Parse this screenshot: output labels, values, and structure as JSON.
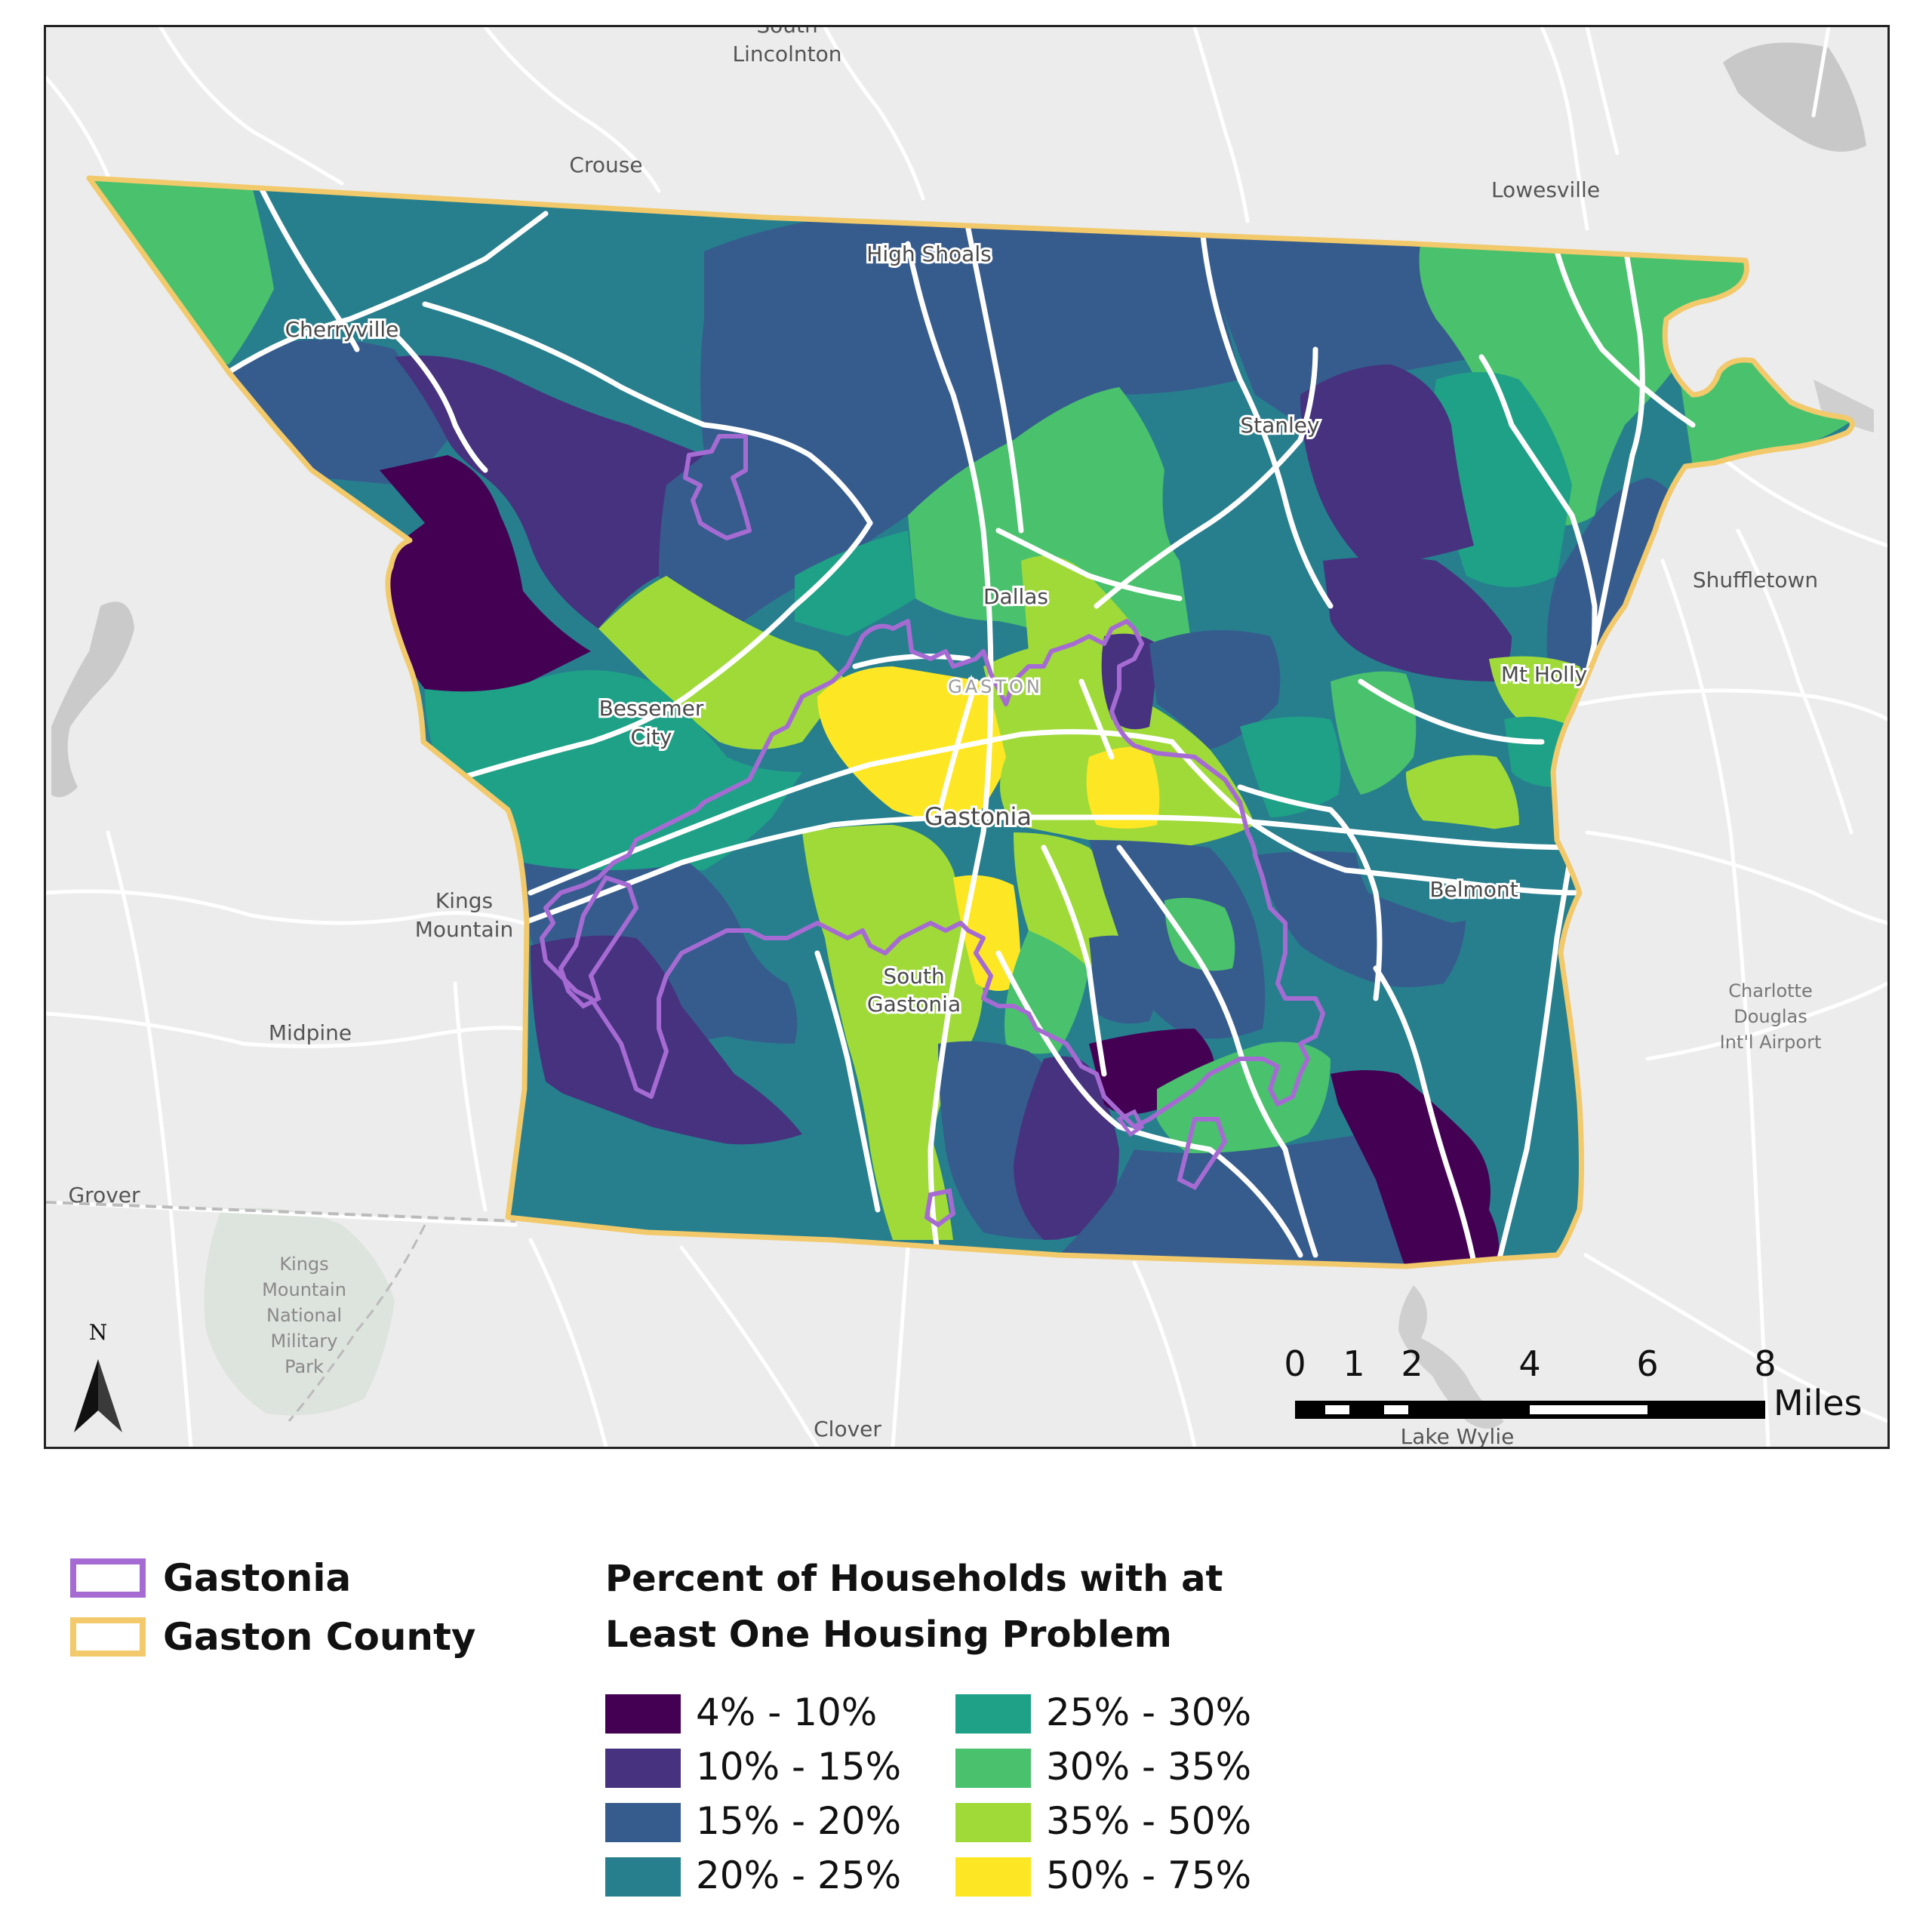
{
  "map": {
    "places": {
      "south_lincolnton_1": "South",
      "south_lincolnton_2": "Lincolnton",
      "crouse": "Crouse",
      "lowesville": "Lowesville",
      "high_shoals": "High Shoals",
      "cherryville": "Cherryville",
      "stanley": "Stanley",
      "dallas": "Dallas",
      "gaston": "GASTON",
      "shuffletown": "Shuffletown",
      "mt_holly": "Mt Holly",
      "bessemer_city_1": "Bessemer",
      "bessemer_city_2": "City",
      "gastonia": "Gastonia",
      "kings_mountain_1": "Kings",
      "kings_mountain_2": "Mountain",
      "belmont": "Belmont",
      "south_gastonia_1": "South",
      "south_gastonia_2": "Gastonia",
      "midpine": "Midpine",
      "charlotte_airport_1": "Charlotte",
      "charlotte_airport_2": "Douglas",
      "charlotte_airport_3": "Int'l Airport",
      "grover": "Grover",
      "kmnmp_1": "Kings",
      "kmnmp_2": "Mountain",
      "kmnmp_3": "National",
      "kmnmp_4": "Military",
      "kmnmp_5": "Park",
      "clover": "Clover",
      "lake_wylie": "Lake Wylie"
    },
    "north_arrow": {
      "label": "N",
      "icon": "north-arrow-icon"
    },
    "scale_bar": {
      "ticks": [
        "0",
        "1",
        "2",
        "4",
        "6",
        "8"
      ],
      "unit": "Miles"
    }
  },
  "legend": {
    "boundaries": [
      {
        "label": "Gastonia",
        "color": "#a66bd3"
      },
      {
        "label": "Gaston County",
        "color": "#f2c96b"
      }
    ],
    "title_line1": "Percent of Households with at",
    "title_line2": "Least One Housing Problem",
    "classes": [
      {
        "label": "4% - 10%",
        "color": "#440154"
      },
      {
        "label": "10% - 15%",
        "color": "#46327e"
      },
      {
        "label": "15% - 20%",
        "color": "#365c8d"
      },
      {
        "label": "20% - 25%",
        "color": "#277f8e"
      },
      {
        "label": "25% - 30%",
        "color": "#1fa187"
      },
      {
        "label": "30% - 35%",
        "color": "#4ac16d"
      },
      {
        "label": "35% - 50%",
        "color": "#a0da39"
      },
      {
        "label": "50% - 75%",
        "color": "#fde725"
      }
    ]
  }
}
